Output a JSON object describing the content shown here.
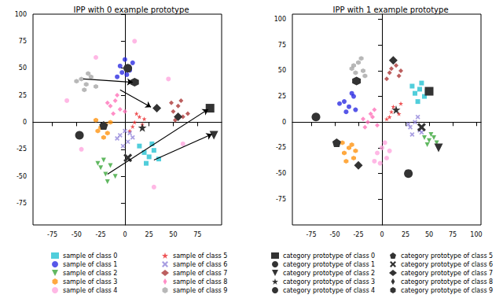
{
  "chart_data": [
    {
      "type": "scatter",
      "title": "IPP with 0 example prototype",
      "legend": "bottom",
      "grid": false,
      "xlim": [
        -95,
        100
      ],
      "ylim": [
        -95,
        100
      ],
      "xticks": [
        -75,
        -50,
        -25,
        0,
        25,
        50,
        75
      ],
      "yticks": [
        -75,
        -50,
        -25,
        0,
        25,
        50,
        75,
        100
      ],
      "series": [
        {
          "name": "sample of class 0",
          "color": "#17becf",
          "marker": "square",
          "x": [
            20,
            25,
            30,
            22,
            28,
            35,
            15
          ],
          "values": [
            -28,
            -32,
            -26,
            -38,
            -20,
            -34,
            -22
          ]
        },
        {
          "name": "sample of class 1",
          "color": "#1f1fe0",
          "marker": "circle",
          "x": [
            -5,
            0,
            5,
            2,
            -3,
            8,
            -8
          ],
          "values": [
            52,
            58,
            48,
            44,
            46,
            55,
            42
          ]
        },
        {
          "name": "sample of class 2",
          "color": "#2ca02c",
          "marker": "triangle_down",
          "x": [
            -25,
            -20,
            -15,
            -18,
            -22,
            -10,
            -28
          ],
          "values": [
            -42,
            -48,
            -40,
            -55,
            -35,
            -50,
            -38
          ]
        },
        {
          "name": "sample of class 3",
          "color": "#ff8c00",
          "marker": "hexagon",
          "x": [
            -25,
            -20,
            -18,
            -28,
            -15,
            -30,
            -22
          ],
          "values": [
            -5,
            -2,
            -10,
            -8,
            0,
            2,
            -14
          ]
        },
        {
          "name": "sample of class 4",
          "color": "#ffa0dc",
          "marker": "circle",
          "x": [
            -60,
            -45,
            30,
            60,
            -30,
            10,
            45
          ],
          "values": [
            20,
            -25,
            -60,
            -20,
            60,
            75,
            40
          ]
        },
        {
          "name": "sample of class 5",
          "color": "#e8191c",
          "marker": "star",
          "x": [
            10,
            15,
            8,
            18,
            12,
            20,
            5
          ],
          "values": [
            0,
            5,
            -4,
            -2,
            8,
            3,
            -8
          ]
        },
        {
          "name": "sample of class 6",
          "color": "#8c7fd8",
          "marker": "x",
          "x": [
            -5,
            0,
            3,
            -8,
            5,
            -2,
            8
          ],
          "values": [
            -12,
            -8,
            -18,
            -15,
            -10,
            -22,
            -14
          ]
        },
        {
          "name": "sample of class 7",
          "color": "#a52a2a",
          "marker": "diamond",
          "x": [
            50,
            55,
            60,
            52,
            58,
            65,
            48
          ],
          "values": [
            10,
            15,
            5,
            2,
            20,
            8,
            18
          ]
        },
        {
          "name": "sample of class 8",
          "color": "#ff69b4",
          "marker": "thin_diamond",
          "x": [
            -15,
            -10,
            -5,
            -12,
            -8,
            -18,
            0
          ],
          "values": [
            15,
            20,
            12,
            8,
            25,
            18,
            10
          ]
        },
        {
          "name": "sample of class 9",
          "color": "#a0a0a0",
          "marker": "hexagon",
          "x": [
            -45,
            -40,
            -35,
            -42,
            -38,
            -50,
            -30
          ],
          "values": [
            40,
            35,
            42,
            30,
            45,
            38,
            33
          ]
        }
      ],
      "prototypes": [
        {
          "name": "category prototype of class 0",
          "color": "#333333",
          "marker": "square",
          "x": [
            88
          ],
          "values": [
            13
          ]
        },
        {
          "name": "category prototype of class 1",
          "color": "#333333",
          "marker": "circle",
          "x": [
            3
          ],
          "values": [
            50
          ]
        },
        {
          "name": "category prototype of class 2",
          "color": "#333333",
          "marker": "triangle_down",
          "x": [
            92
          ],
          "values": [
            -12
          ]
        },
        {
          "name": "category prototype of class 3",
          "color": "#333333",
          "marker": "star",
          "x": [
            18
          ],
          "values": [
            -5
          ]
        },
        {
          "name": "category prototype of class 4",
          "color": "#333333",
          "marker": "circle",
          "x": [
            -47
          ],
          "values": [
            -12
          ]
        },
        {
          "name": "category prototype of class 5",
          "color": "#333333",
          "marker": "pentagon",
          "x": [
            -22
          ],
          "values": [
            -3
          ]
        },
        {
          "name": "category prototype of class 6",
          "color": "#333333",
          "marker": "x",
          "x": [
            3
          ],
          "values": [
            -33
          ]
        },
        {
          "name": "category prototype of class 7",
          "color": "#333333",
          "marker": "diamond",
          "x": [
            55
          ],
          "values": [
            5
          ]
        },
        {
          "name": "category prototype of class 8",
          "color": "#333333",
          "marker": "thin_diamond",
          "x": [
            33
          ],
          "values": [
            13
          ]
        },
        {
          "name": "category prototype of class 9",
          "color": "#333333",
          "marker": "hexagon",
          "x": [
            10
          ],
          "values": [
            37
          ]
        }
      ],
      "arrows": [
        {
          "from": [
            -43,
            40
          ],
          "to": [
            8,
            37
          ]
        },
        {
          "from": [
            -5,
            30
          ],
          "to": [
            27,
            14
          ]
        },
        {
          "from": [
            -18,
            -48
          ],
          "to": [
            86,
            12
          ]
        },
        {
          "from": [
            30,
            -35
          ],
          "to": [
            90,
            -11
          ]
        }
      ]
    },
    {
      "type": "scatter",
      "title": "IPP with 1 example prototype",
      "legend": "bottom",
      "grid": false,
      "xlim": [
        -95,
        105
      ],
      "ylim": [
        -100,
        105
      ],
      "xticks": [
        -75,
        -50,
        -25,
        0,
        25,
        50,
        75,
        100
      ],
      "yticks": [
        -75,
        -50,
        -25,
        0,
        25,
        50,
        75,
        100
      ],
      "series": [
        {
          "name": "sample of class 0",
          "color": "#17becf",
          "marker": "square",
          "x": [
            35,
            40,
            45,
            38,
            32,
            48,
            42
          ],
          "values": [
            28,
            32,
            25,
            20,
            35,
            30,
            38
          ]
        },
        {
          "name": "sample of class 1",
          "color": "#1f1fe0",
          "marker": "circle",
          "x": [
            -40,
            -35,
            -30,
            -38,
            -32,
            -45,
            -28
          ],
          "values": [
            20,
            15,
            25,
            10,
            28,
            18,
            12
          ]
        },
        {
          "name": "sample of class 2",
          "color": "#2ca02c",
          "marker": "triangle_down",
          "x": [
            50,
            55,
            48,
            58,
            52,
            45,
            60
          ],
          "values": [
            -18,
            -15,
            -22,
            -20,
            -12,
            -15,
            -25
          ]
        },
        {
          "name": "sample of class 3",
          "color": "#ff8c00",
          "marker": "hexagon",
          "x": [
            -40,
            -35,
            -30,
            -38,
            -32,
            -28,
            -42
          ],
          "values": [
            -30,
            -25,
            -35,
            -38,
            -22,
            -28,
            -20
          ]
        },
        {
          "name": "sample of class 4",
          "color": "#ffa0dc",
          "marker": "circle",
          "x": [
            -5,
            0,
            5,
            -2,
            8,
            3,
            -8
          ],
          "values": [
            -30,
            -25,
            -35,
            -40,
            -28,
            -20,
            -38
          ]
        },
        {
          "name": "sample of class 5",
          "color": "#e8191c",
          "marker": "star",
          "x": [
            10,
            15,
            8,
            18,
            12,
            5,
            20
          ],
          "values": [
            10,
            12,
            5,
            8,
            15,
            3,
            18
          ]
        },
        {
          "name": "sample of class 6",
          "color": "#8c7fd8",
          "marker": "x",
          "x": [
            30,
            35,
            40,
            32,
            38,
            28,
            42
          ],
          "values": [
            -5,
            0,
            -8,
            -12,
            5,
            -2,
            -10
          ]
        },
        {
          "name": "sample of class 7",
          "color": "#a52a2a",
          "marker": "diamond",
          "x": [
            10,
            15,
            8,
            18,
            12,
            20,
            5
          ],
          "values": [
            52,
            55,
            48,
            45,
            60,
            50,
            42
          ]
        },
        {
          "name": "sample of class 8",
          "color": "#ff69b4",
          "marker": "thin_diamond",
          "x": [
            -15,
            -10,
            -5,
            -12,
            -18,
            -8,
            -20
          ],
          "values": [
            0,
            5,
            -3,
            8,
            -5,
            12,
            3
          ]
        },
        {
          "name": "sample of class 9",
          "color": "#a0a0a0",
          "marker": "hexagon",
          "x": [
            -30,
            -25,
            -20,
            -28,
            -22,
            -32,
            -18
          ],
          "values": [
            55,
            58,
            50,
            48,
            62,
            52,
            45
          ]
        }
      ],
      "prototypes": [
        {
          "name": "category prototype of class 0",
          "color": "#333333",
          "marker": "square",
          "x": [
            50
          ],
          "values": [
            30
          ]
        },
        {
          "name": "category prototype of class 1",
          "color": "#333333",
          "marker": "circle",
          "x": [
            -70
          ],
          "values": [
            5
          ]
        },
        {
          "name": "category prototype of class 2",
          "color": "#333333",
          "marker": "triangle_down",
          "x": [
            60
          ],
          "values": [
            -25
          ]
        },
        {
          "name": "category prototype of class 3",
          "color": "#333333",
          "marker": "star",
          "x": [
            15
          ],
          "values": [
            12
          ]
        },
        {
          "name": "category prototype of class 4",
          "color": "#333333",
          "marker": "circle",
          "x": [
            28
          ],
          "values": [
            -50
          ]
        },
        {
          "name": "category prototype of class 5",
          "color": "#333333",
          "marker": "pentagon",
          "x": [
            -48
          ],
          "values": [
            -20
          ]
        },
        {
          "name": "category prototype of class 6",
          "color": "#333333",
          "marker": "x",
          "x": [
            42
          ],
          "values": [
            -5
          ]
        },
        {
          "name": "category prototype of class 7",
          "color": "#333333",
          "marker": "diamond",
          "x": [
            -25
          ],
          "values": [
            -42
          ]
        },
        {
          "name": "category prototype of class 8",
          "color": "#333333",
          "marker": "diamond",
          "x": [
            12
          ],
          "values": [
            60
          ]
        },
        {
          "name": "category prototype of class 9",
          "color": "#333333",
          "marker": "hexagon",
          "x": [
            -27
          ],
          "values": [
            40
          ]
        }
      ]
    }
  ]
}
